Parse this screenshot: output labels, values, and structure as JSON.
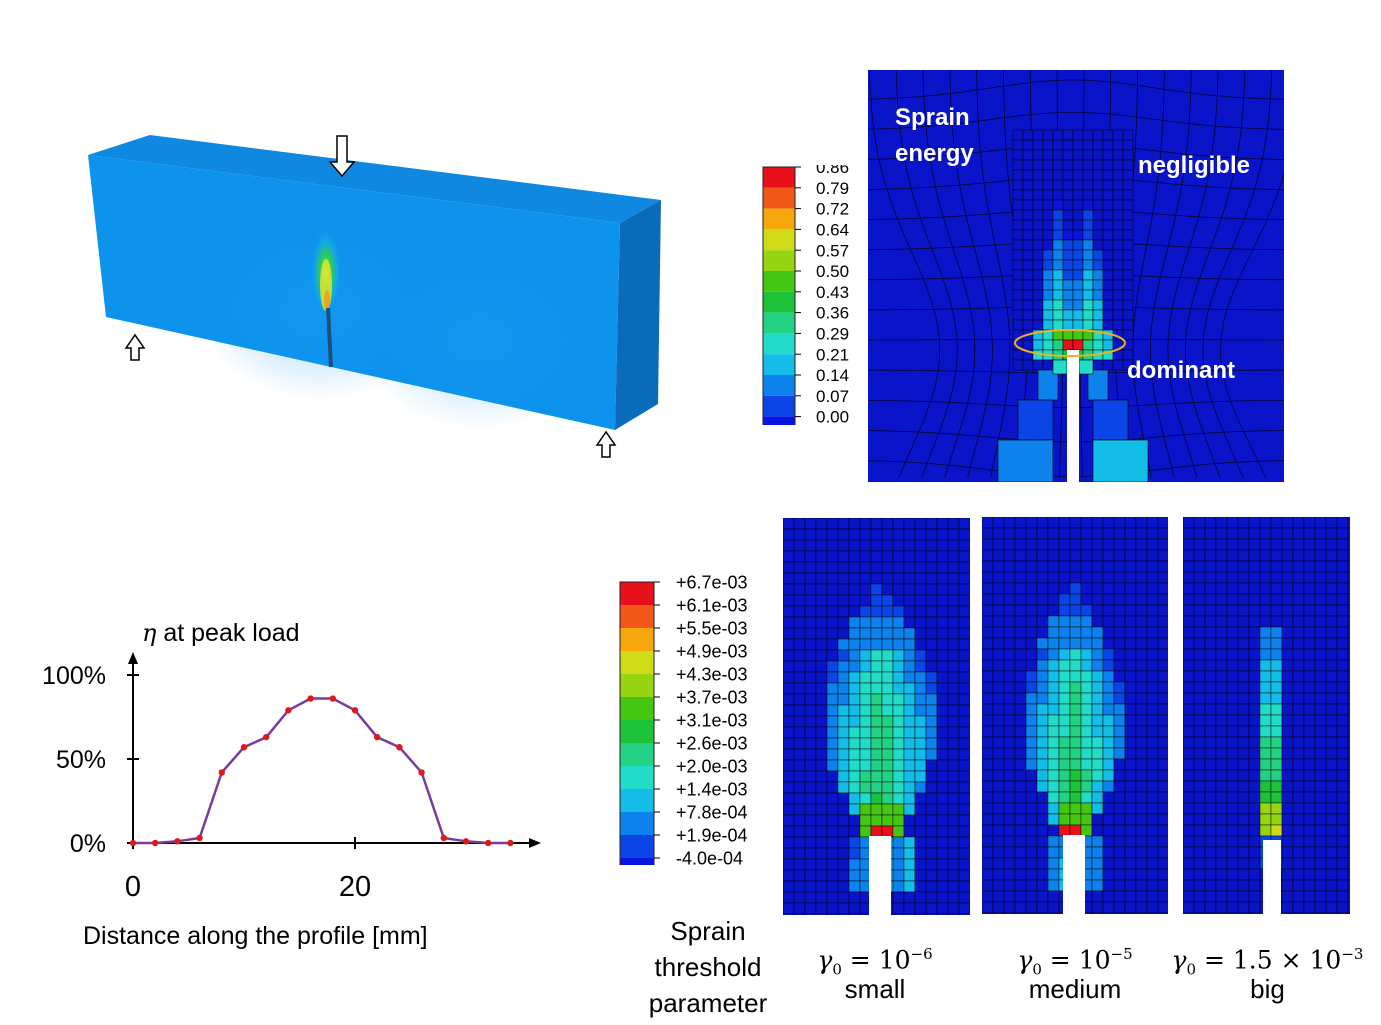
{
  "beam": {
    "colors": {
      "top": "#0f88e0",
      "front": "#0d93ec",
      "side": "#0a6cb9",
      "crack": "#1d4f7a"
    }
  },
  "panel_top": {
    "legend": {
      "values": [
        "0.86",
        "0.79",
        "0.72",
        "0.64",
        "0.57",
        "0.50",
        "0.43",
        "0.36",
        "0.29",
        "0.21",
        "0.14",
        "0.07",
        "0.00"
      ],
      "colors": [
        "#e8101a",
        "#f2581a",
        "#f6a70d",
        "#cfdb19",
        "#96d50f",
        "#45c613",
        "#1cc23a",
        "#22d183",
        "#22dcc8",
        "#14bde8",
        "#0d82ec",
        "#0c45e6",
        "#0a14e0"
      ]
    },
    "labels": {
      "sprain": "Sprain",
      "energy": "energy",
      "negligible": "negligible",
      "dominant": "dominant"
    }
  },
  "panel_bottom": {
    "legend": {
      "values": [
        "+6.7e-03",
        "+6.1e-03",
        "+5.5e-03",
        "+4.9e-03",
        "+4.3e-03",
        "+3.7e-03",
        "+3.1e-03",
        "+2.6e-03",
        "+2.0e-03",
        "+1.4e-03",
        "+7.8e-04",
        "+1.9e-04",
        "-4.0e-04"
      ],
      "colors": [
        "#e8101a",
        "#f2581a",
        "#f6a70d",
        "#cfdb19",
        "#96d50f",
        "#45c613",
        "#1cc23a",
        "#22d183",
        "#22dcc8",
        "#14bde8",
        "#0d82ec",
        "#0c45e6",
        "#0a14e0"
      ]
    },
    "caption_lines": [
      "Sprain",
      "threshold",
      "parameter"
    ],
    "cases": [
      {
        "math_symbol": "γ",
        "math_sub": "0",
        "math_rest": " = 10",
        "math_exp": "−6",
        "word": "small"
      },
      {
        "math_symbol": "γ",
        "math_sub": "0",
        "math_rest": " = 10",
        "math_exp": "−5",
        "word": "medium"
      },
      {
        "math_symbol": "γ",
        "math_sub": "0",
        "math_rest": " = 1.5 × 10",
        "math_exp": "−3",
        "word": "big"
      }
    ]
  },
  "profile_plot": {
    "title_symbol": "η",
    "title_rest": " at peak load",
    "xlabel": "Distance along the profile [mm]"
  },
  "chart_data": {
    "type": "line",
    "title": "η at peak load",
    "xlabel": "Distance along the profile [mm]",
    "ylabel": "",
    "xticks": [
      "0",
      "20"
    ],
    "yticks": [
      "0%",
      "50%",
      "100%"
    ],
    "xlim": [
      0,
      36
    ],
    "ylim": [
      0,
      100
    ],
    "line_color": "#7b3aa0",
    "marker_color": "#e01818",
    "x": [
      0,
      2,
      4,
      6,
      8,
      10,
      12,
      14,
      16,
      18,
      20,
      22,
      24,
      26,
      28,
      30,
      32,
      34
    ],
    "y": [
      0,
      0,
      1,
      3,
      42,
      57,
      63,
      79,
      86,
      86,
      79,
      63,
      57,
      42,
      3,
      1,
      0,
      0
    ]
  }
}
